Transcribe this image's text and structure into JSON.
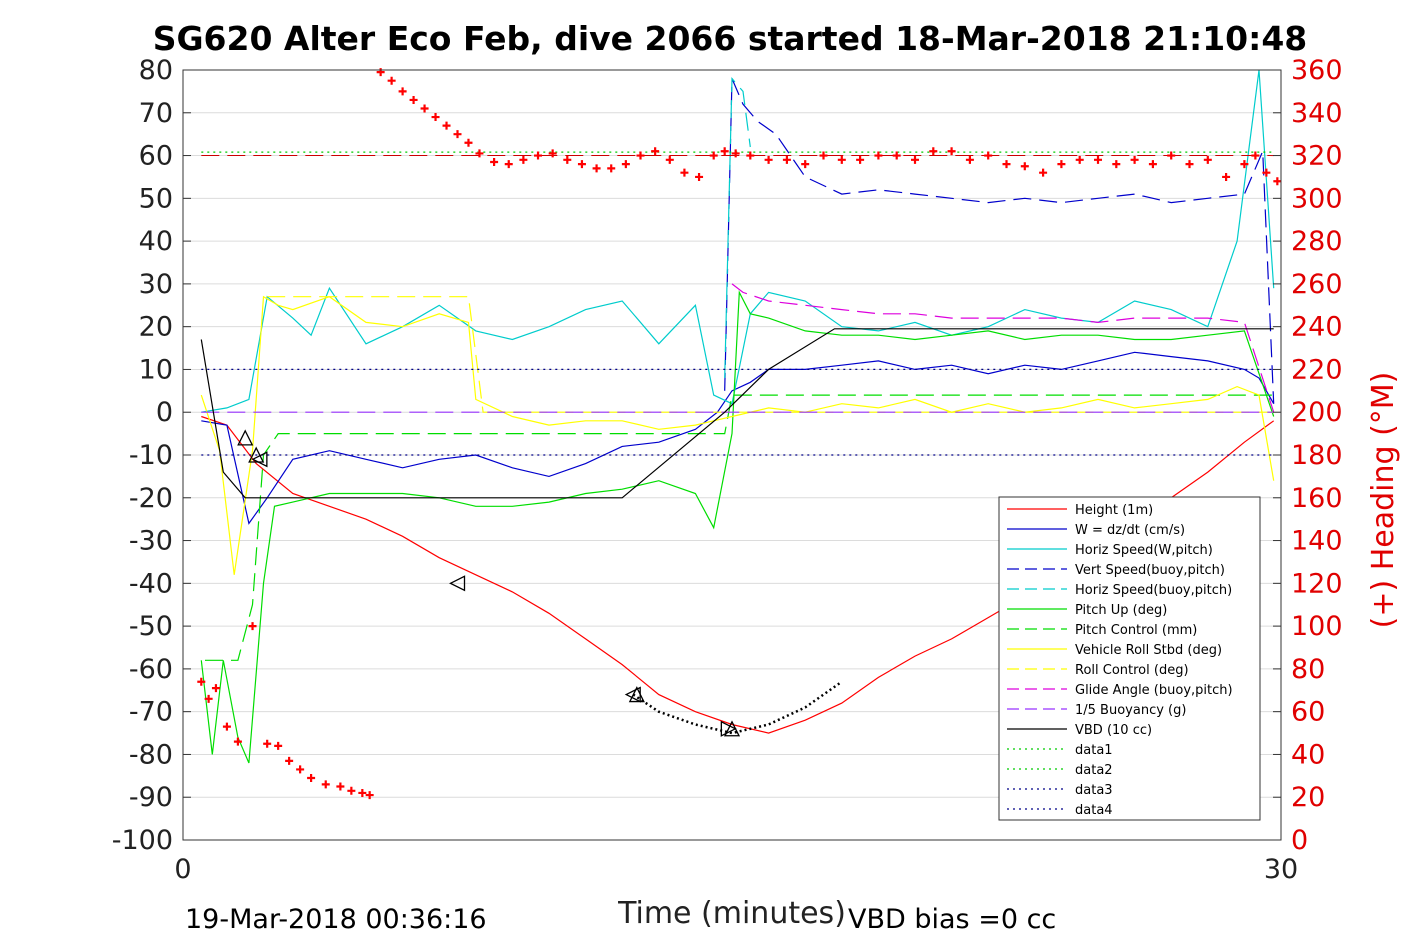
{
  "chart_data": {
    "type": "line",
    "title": "SG620 Alter Eco Feb, dive 2066 started 18-Mar-2018 21:10:48",
    "xlabel": "Time (minutes)",
    "ylabel_right": "(+) Heading (°M)",
    "xlim": [
      0,
      30
    ],
    "ylim": [
      -100,
      80
    ],
    "ylim_right": [
      0,
      360
    ],
    "x_ticks": [
      "0",
      "30"
    ],
    "y_ticks": [
      "80",
      "70",
      "60",
      "50",
      "40",
      "30",
      "20",
      "10",
      "0",
      "-10",
      "-20",
      "-30",
      "-40",
      "-50",
      "-60",
      "-70",
      "-80",
      "-90",
      "-100"
    ],
    "y_right_ticks": [
      "360",
      "340",
      "320",
      "300",
      "280",
      "260",
      "240",
      "220",
      "200",
      "180",
      "160",
      "140",
      "120",
      "100",
      "80",
      "60",
      "40",
      "20",
      "0"
    ],
    "grid": "horizontal",
    "legend_position": "lower-right",
    "footer_left": "19-Mar-2018 00:36:16",
    "footer_right": "VBD bias =0 cc",
    "series": [
      {
        "name": "Height (1m)",
        "color": "#ff0000",
        "style": "solid",
        "x": [
          0.5,
          1.2,
          2,
          3,
          4,
          5,
          6,
          7,
          8,
          9,
          10,
          11,
          12,
          13,
          14,
          15,
          16,
          17,
          18,
          19,
          20,
          21,
          22,
          23,
          24,
          25,
          26,
          27,
          28,
          29,
          29.8
        ],
        "y": [
          -1,
          -3,
          -12,
          -19,
          -22,
          -25,
          -29,
          -34,
          -38,
          -42,
          -47,
          -53,
          -59,
          -66,
          -70,
          -73,
          -75,
          -72,
          -68,
          -62,
          -57,
          -53,
          -48,
          -43,
          -37,
          -32,
          -26,
          -20,
          -14,
          -7,
          -2
        ]
      },
      {
        "name": "W = dz/dt (cm/s)",
        "color": "#0000cc",
        "style": "solid",
        "x": [
          0.5,
          1.2,
          1.8,
          2.3,
          3,
          4,
          5,
          6,
          7,
          8,
          9,
          10,
          11,
          12,
          13,
          14,
          14.6,
          15,
          15.5,
          16,
          17,
          18,
          19,
          20,
          21,
          22,
          23,
          24,
          25,
          26,
          27,
          28,
          29,
          29.4,
          29.8
        ],
        "y": [
          -2,
          -3,
          -26,
          -20,
          -11,
          -9,
          -11,
          -13,
          -11,
          -10,
          -13,
          -15,
          -12,
          -8,
          -7,
          -4,
          0,
          5,
          7,
          10,
          10,
          11,
          12,
          10,
          11,
          9,
          11,
          10,
          12,
          14,
          13,
          12,
          10,
          8,
          2
        ]
      },
      {
        "name": "Horiz Speed(W,pitch)",
        "color": "#00cccc",
        "style": "solid",
        "x": [
          0.5,
          1.2,
          1.8,
          2.3,
          3,
          3.5,
          4,
          5,
          6,
          7,
          8,
          9,
          10,
          11,
          12,
          13,
          14,
          14.5,
          15,
          15.5,
          16,
          17,
          18,
          19,
          20,
          21,
          22,
          23,
          24,
          25,
          26,
          27,
          28,
          28.8,
          29.4,
          29.8
        ],
        "y": [
          0,
          1,
          3,
          27,
          22,
          18,
          29,
          16,
          20,
          25,
          19,
          17,
          20,
          24,
          26,
          16,
          25,
          4,
          2,
          23,
          28,
          26,
          20,
          19,
          21,
          18,
          20,
          24,
          22,
          21,
          26,
          24,
          20,
          40,
          80,
          29
        ]
      },
      {
        "name": "Vert Speed(buoy,pitch)",
        "color": "#0000cc",
        "style": "dashed",
        "x": [
          14.8,
          15,
          15.3,
          15.7,
          16.2,
          17,
          18,
          19,
          20,
          21,
          22,
          23,
          24,
          25,
          26,
          27,
          28,
          29,
          29.5,
          29.8
        ],
        "y": [
          5,
          78,
          72,
          68,
          65,
          55,
          51,
          52,
          51,
          50,
          49,
          50,
          49,
          50,
          51,
          49,
          50,
          51,
          61,
          2
        ]
      },
      {
        "name": "Horiz Speed(buoy,pitch)",
        "color": "#00cccc",
        "style": "dashed",
        "x": [
          14.8,
          15,
          15.3,
          15.5
        ],
        "y": [
          8,
          78,
          75,
          62
        ]
      },
      {
        "name": "Pitch Up (deg)",
        "color": "#00dd00",
        "style": "solid",
        "x": [
          0.5,
          0.8,
          1.1,
          1.5,
          1.8,
          2.2,
          2.5,
          3,
          4,
          5,
          6,
          7,
          8,
          9,
          10,
          11,
          12,
          13,
          14,
          14.5,
          15,
          15.2,
          15.5,
          16,
          17,
          18,
          19,
          20,
          21,
          22,
          23,
          24,
          25,
          26,
          27,
          28,
          29,
          29.8
        ],
        "y": [
          -58,
          -80,
          -58,
          -76,
          -82,
          -40,
          -22,
          -21,
          -19,
          -19,
          -19,
          -20,
          -22,
          -22,
          -21,
          -19,
          -18,
          -16,
          -19,
          -27,
          -5,
          28,
          23,
          22,
          19,
          18,
          18,
          17,
          18,
          19,
          17,
          18,
          18,
          17,
          17,
          18,
          19,
          -1
        ]
      },
      {
        "name": "Pitch Control (mm)",
        "color": "#00dd00",
        "style": "dashed",
        "x": [
          0.6,
          1.5,
          1.9,
          2.2,
          2.6,
          4,
          6,
          8,
          10,
          12,
          14,
          14.8,
          15,
          16,
          18,
          20,
          22,
          24,
          26,
          28,
          29.8
        ],
        "y": [
          -58,
          -58,
          -45,
          -10,
          -5,
          -5,
          -5,
          -5,
          -5,
          -5,
          -5,
          -5,
          4,
          4,
          4,
          4,
          4,
          4,
          4,
          4,
          4
        ]
      },
      {
        "name": "Vehicle Roll Stbd (deg)",
        "color": "#ffff00",
        "style": "solid",
        "x": [
          0.5,
          1.0,
          1.4,
          1.9,
          2.2,
          2.6,
          3,
          4,
          5,
          6,
          7,
          7.8,
          8,
          9,
          10,
          11,
          12,
          13,
          14,
          14.5,
          15,
          16,
          17,
          18,
          19,
          20,
          21,
          22,
          23,
          24,
          25,
          26,
          27,
          28,
          28.8,
          29.4,
          29.8
        ],
        "y": [
          4,
          -9,
          -38,
          -9,
          27,
          25,
          24,
          27,
          21,
          20,
          23,
          21,
          3,
          -1,
          -3,
          -2,
          -2,
          -4,
          -3,
          -2,
          -1,
          1,
          0,
          2,
          1,
          3,
          0,
          2,
          0,
          1,
          3,
          1,
          2,
          3,
          6,
          4,
          -16
        ]
      },
      {
        "name": "Roll Control (deg)",
        "color": "#ffff00",
        "style": "dashed",
        "x": [
          2.3,
          2.6,
          7.8,
          8.2,
          10,
          12,
          14,
          16,
          18,
          20,
          22,
          24,
          26,
          28,
          29.8
        ],
        "y": [
          27,
          27,
          27,
          0,
          0,
          0,
          0,
          0,
          0,
          0,
          0,
          0,
          0,
          0,
          0
        ]
      },
      {
        "name": "Glide Angle (buoy,pitch)",
        "color": "#dd00dd",
        "style": "dashed",
        "x": [
          15,
          15.3,
          16,
          17,
          18,
          19,
          20,
          21,
          22,
          23,
          24,
          25,
          26,
          27,
          28,
          29,
          29.8
        ],
        "y": [
          30,
          28,
          26,
          25,
          24,
          23,
          23,
          22,
          22,
          22,
          22,
          21,
          22,
          22,
          22,
          21,
          0
        ]
      },
      {
        "name": "1/5 Buoyancy (g)",
        "color": "#9933ff",
        "style": "dashed",
        "x": [
          0.5,
          14.8,
          15,
          29.8
        ],
        "y": [
          0,
          0,
          0,
          0
        ]
      },
      {
        "name": "VBD (10 cc)",
        "color": "#000000",
        "style": "solid",
        "x": [
          0.5,
          1.1,
          1.7,
          2.5,
          5,
          8,
          10,
          12,
          14.8,
          16,
          17.8,
          20,
          25,
          29.8
        ],
        "y": [
          17,
          -14,
          -20,
          -20,
          -20,
          -20,
          -20,
          -20,
          0,
          10,
          19.5,
          19.5,
          19.5,
          19.5
        ]
      },
      {
        "name": "data1",
        "color": "#00cc00",
        "style": "dotted",
        "x": [
          0.5,
          29.8
        ],
        "y": [
          60.8,
          60.8
        ]
      },
      {
        "name": "data2",
        "color": "#00cc00",
        "style": "dotted",
        "x": [],
        "y": []
      },
      {
        "name": "data3",
        "color": "#000088",
        "style": "dotted",
        "x": [
          0.5,
          29.8
        ],
        "y": [
          10,
          10
        ]
      },
      {
        "name": "data4",
        "color": "#000088",
        "style": "dotted",
        "x": [
          0.5,
          29.8
        ],
        "y": [
          -10,
          -10
        ]
      }
    ],
    "heading": {
      "color": "#ff0000",
      "target": 320,
      "x": [
        0.5,
        0.7,
        0.9,
        1.2,
        1.5,
        1.9,
        2.3,
        2.6,
        2.9,
        3.2,
        3.5,
        3.9,
        4.3,
        4.6,
        4.9,
        5.1,
        5.4,
        5.7,
        6.0,
        6.3,
        6.6,
        6.9,
        7.2,
        7.5,
        7.8,
        8.1,
        8.5,
        8.9,
        9.3,
        9.7,
        10.1,
        10.5,
        10.9,
        11.3,
        11.7,
        12.1,
        12.5,
        12.9,
        13.3,
        13.7,
        14.1,
        14.5,
        14.8,
        15.1,
        15.5,
        16,
        16.5,
        17,
        17.5,
        18,
        18.5,
        19,
        19.5,
        20,
        20.5,
        21,
        21.5,
        22,
        22.5,
        23,
        23.5,
        24,
        24.5,
        25,
        25.5,
        26,
        26.5,
        27,
        27.5,
        28,
        28.5,
        29,
        29.3,
        29.6,
        29.9
      ],
      "y": [
        74,
        66,
        71,
        53,
        46,
        100,
        45,
        44,
        37,
        33,
        29,
        26,
        25,
        23,
        22,
        21,
        359,
        355,
        350,
        346,
        342,
        338,
        334,
        330,
        326,
        321,
        317,
        316,
        318,
        320,
        321,
        318,
        316,
        314,
        314,
        316,
        320,
        322,
        318,
        312,
        310,
        320,
        322,
        321,
        320,
        318,
        318,
        316,
        320,
        318,
        318,
        320,
        320,
        318,
        322,
        322,
        318,
        320,
        316,
        315,
        312,
        316,
        318,
        318,
        316,
        318,
        316,
        320,
        316,
        318,
        310,
        316,
        320,
        312,
        308
      ]
    },
    "markers": {
      "x": [
        1.7,
        2.0,
        2.1,
        7.5,
        12.3,
        12.4,
        14.9,
        15.0
      ],
      "y": [
        -6,
        -10,
        -11,
        -40,
        -66,
        -66,
        -74,
        -74
      ],
      "shape": [
        "triangle-up",
        "triangle-up",
        "triangle-left",
        "triangle-left",
        "triangle-left",
        "triangle-up",
        "triangle-right",
        "triangle-up"
      ]
    },
    "dotted_segment": {
      "color": "#000000",
      "x": [
        12.3,
        13,
        14,
        15,
        16,
        17,
        18
      ],
      "y": [
        -66,
        -70,
        -73,
        -75,
        -73,
        -69,
        -63
      ]
    }
  }
}
